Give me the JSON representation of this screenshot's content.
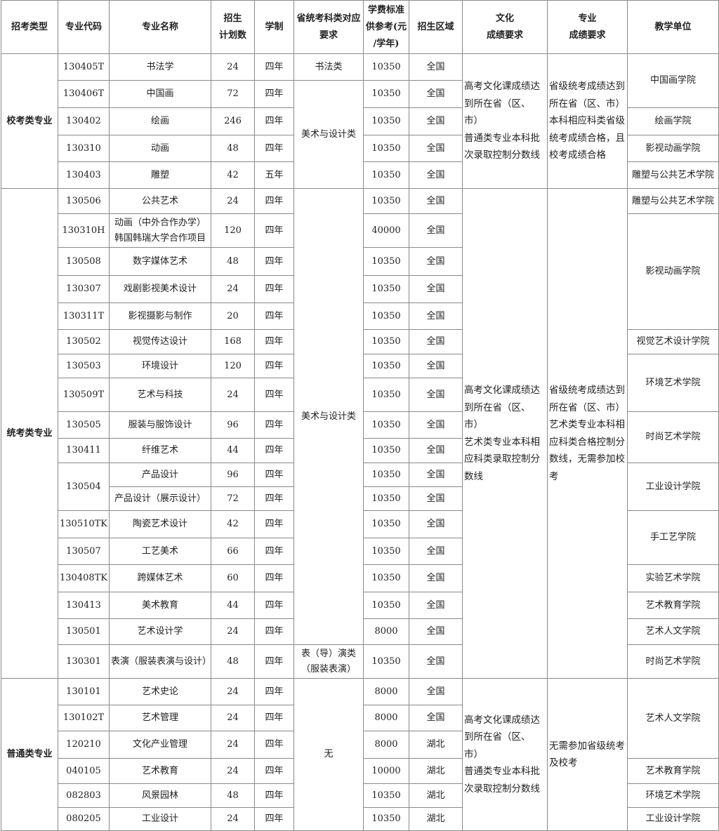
{
  "columns": [
    {
      "field": "category",
      "label": "招考类型"
    },
    {
      "field": "code",
      "label": "专业代码"
    },
    {
      "field": "name",
      "label": "专业名称"
    },
    {
      "field": "quota",
      "label": "招生\n计划数"
    },
    {
      "field": "duration",
      "label": "学制"
    },
    {
      "field": "subject",
      "label": "省统考科类对应\n要求"
    },
    {
      "field": "tuition",
      "label": "学费标准\n供参考(元\n/学年)"
    },
    {
      "field": "region",
      "label": "招生区域"
    },
    {
      "field": "culture_req",
      "label": "文化\n成绩要求"
    },
    {
      "field": "major_req",
      "label": "专业\n成绩要求"
    },
    {
      "field": "unit",
      "label": "教学单位"
    }
  ],
  "rows": [
    [
      {
        "f": "category",
        "t": "校考类专业",
        "span": 5
      },
      {
        "f": "code",
        "t": "130405T"
      },
      {
        "f": "name",
        "t": "书法学"
      },
      {
        "f": "quota",
        "t": "24"
      },
      {
        "f": "duration",
        "t": "四年"
      },
      {
        "f": "subject",
        "t": "书法类"
      },
      {
        "f": "tuition",
        "t": "10350"
      },
      {
        "f": "region",
        "t": "全国"
      },
      {
        "f": "culture_req",
        "t": "高考文化课成绩达\n到所在省（区、市）\n普通类专业本科批\n次录取控制分数线",
        "span": 5
      },
      {
        "f": "major_req",
        "t": "省级统考成绩达到\n所在省（区、市）\n本科相应科类省级\n统考成绩合格，且\n校考成绩合格",
        "span": 5
      },
      {
        "f": "unit",
        "t": "中国画学院",
        "span": 2
      }
    ],
    [
      {
        "f": "code",
        "t": "130406T"
      },
      {
        "f": "name",
        "t": "中国画"
      },
      {
        "f": "quota",
        "t": "72"
      },
      {
        "f": "duration",
        "t": "四年"
      },
      {
        "f": "subject",
        "t": "美术与设计类",
        "span": 4
      },
      {
        "f": "tuition",
        "t": "10350"
      },
      {
        "f": "region",
        "t": "全国"
      }
    ],
    [
      {
        "f": "code",
        "t": "130402"
      },
      {
        "f": "name",
        "t": "绘画"
      },
      {
        "f": "quota",
        "t": "246"
      },
      {
        "f": "duration",
        "t": "四年"
      },
      {
        "f": "tuition",
        "t": "10350"
      },
      {
        "f": "region",
        "t": "全国"
      },
      {
        "f": "unit",
        "t": "绘画学院"
      }
    ],
    [
      {
        "f": "code",
        "t": "130310"
      },
      {
        "f": "name",
        "t": "动画"
      },
      {
        "f": "quota",
        "t": "48"
      },
      {
        "f": "duration",
        "t": "四年"
      },
      {
        "f": "tuition",
        "t": "10350"
      },
      {
        "f": "region",
        "t": "全国"
      },
      {
        "f": "unit",
        "t": "影视动画学院"
      }
    ],
    [
      {
        "f": "code",
        "t": "130403"
      },
      {
        "f": "name",
        "t": "雕塑"
      },
      {
        "f": "quota",
        "t": "42"
      },
      {
        "f": "duration",
        "t": "五年"
      },
      {
        "f": "tuition",
        "t": "10350"
      },
      {
        "f": "region",
        "t": "全国"
      },
      {
        "f": "unit",
        "t": "雕塑与公共艺术学院"
      }
    ],
    [
      {
        "f": "category",
        "t": "统考类专业",
        "span": 18
      },
      {
        "f": "code",
        "t": "130506"
      },
      {
        "f": "name",
        "t": "公共艺术"
      },
      {
        "f": "quota",
        "t": "24"
      },
      {
        "f": "duration",
        "t": "四年"
      },
      {
        "f": "subject",
        "t": "美术与设计类",
        "span": 17
      },
      {
        "f": "tuition",
        "t": "10350"
      },
      {
        "f": "region",
        "t": "全国"
      },
      {
        "f": "culture_req",
        "t": "高考文化课成绩达\n到所在省（区、市）\n艺术类专业本科相\n应科类录取控制分\n数线",
        "span": 18
      },
      {
        "f": "major_req",
        "t": "省级统考成绩达到\n所在省（区、市）\n艺术类专业本科相\n应科类合格控制分\n数线，无需参加校\n考",
        "span": 18
      },
      {
        "f": "unit",
        "t": "雕塑与公共艺术学院"
      }
    ],
    [
      {
        "f": "code",
        "t": "130310H"
      },
      {
        "f": "name",
        "t": "动画（中外合作办学）\n韩国韩瑞大学合作项目"
      },
      {
        "f": "quota",
        "t": "120"
      },
      {
        "f": "duration",
        "t": "四年"
      },
      {
        "f": "tuition",
        "t": "40000"
      },
      {
        "f": "region",
        "t": "全国"
      },
      {
        "f": "unit",
        "t": "影视动画学院",
        "span": 4
      }
    ],
    [
      {
        "f": "code",
        "t": "130508"
      },
      {
        "f": "name",
        "t": "数字媒体艺术"
      },
      {
        "f": "quota",
        "t": "48"
      },
      {
        "f": "duration",
        "t": "四年"
      },
      {
        "f": "tuition",
        "t": "10350"
      },
      {
        "f": "region",
        "t": "全国"
      }
    ],
    [
      {
        "f": "code",
        "t": "130307"
      },
      {
        "f": "name",
        "t": "戏剧影视美术设计"
      },
      {
        "f": "quota",
        "t": "24"
      },
      {
        "f": "duration",
        "t": "四年"
      },
      {
        "f": "tuition",
        "t": "10350"
      },
      {
        "f": "region",
        "t": "全国"
      }
    ],
    [
      {
        "f": "code",
        "t": "130311T"
      },
      {
        "f": "name",
        "t": "影视摄影与制作"
      },
      {
        "f": "quota",
        "t": "20"
      },
      {
        "f": "duration",
        "t": "四年"
      },
      {
        "f": "tuition",
        "t": "10350"
      },
      {
        "f": "region",
        "t": "全国"
      }
    ],
    [
      {
        "f": "code",
        "t": "130502"
      },
      {
        "f": "name",
        "t": "视觉传达设计"
      },
      {
        "f": "quota",
        "t": "168"
      },
      {
        "f": "duration",
        "t": "四年"
      },
      {
        "f": "tuition",
        "t": "10350"
      },
      {
        "f": "region",
        "t": "全国"
      },
      {
        "f": "unit",
        "t": "视觉艺术设计学院"
      }
    ],
    [
      {
        "f": "code",
        "t": "130503"
      },
      {
        "f": "name",
        "t": "环境设计"
      },
      {
        "f": "quota",
        "t": "120"
      },
      {
        "f": "duration",
        "t": "四年"
      },
      {
        "f": "tuition",
        "t": "10350"
      },
      {
        "f": "region",
        "t": "全国"
      },
      {
        "f": "unit",
        "t": "环境艺术学院",
        "span": 2
      }
    ],
    [
      {
        "f": "code",
        "t": "130509T"
      },
      {
        "f": "name",
        "t": "艺术与科技"
      },
      {
        "f": "quota",
        "t": "24"
      },
      {
        "f": "duration",
        "t": "四年"
      },
      {
        "f": "tuition",
        "t": "10350"
      },
      {
        "f": "region",
        "t": "全国"
      }
    ],
    [
      {
        "f": "code",
        "t": "130505"
      },
      {
        "f": "name",
        "t": "服装与服饰设计"
      },
      {
        "f": "quota",
        "t": "96"
      },
      {
        "f": "duration",
        "t": "四年"
      },
      {
        "f": "tuition",
        "t": "10350"
      },
      {
        "f": "region",
        "t": "全国"
      },
      {
        "f": "unit",
        "t": "时尚艺术学院",
        "span": 2
      }
    ],
    [
      {
        "f": "code",
        "t": "130411"
      },
      {
        "f": "name",
        "t": "纤维艺术"
      },
      {
        "f": "quota",
        "t": "44"
      },
      {
        "f": "duration",
        "t": "四年"
      },
      {
        "f": "tuition",
        "t": "10350"
      },
      {
        "f": "region",
        "t": "全国"
      }
    ],
    [
      {
        "f": "code",
        "t": "130504",
        "span": 2
      },
      {
        "f": "name",
        "t": "产品设计"
      },
      {
        "f": "quota",
        "t": "96"
      },
      {
        "f": "duration",
        "t": "四年"
      },
      {
        "f": "tuition",
        "t": "10350"
      },
      {
        "f": "region",
        "t": "全国"
      },
      {
        "f": "unit",
        "t": "工业设计学院",
        "span": 2
      }
    ],
    [
      {
        "f": "name",
        "t": "产品设计（展示设计）"
      },
      {
        "f": "quota",
        "t": "72"
      },
      {
        "f": "duration",
        "t": "四年"
      },
      {
        "f": "tuition",
        "t": "10350"
      },
      {
        "f": "region",
        "t": "全国"
      }
    ],
    [
      {
        "f": "code",
        "t": "130510TK"
      },
      {
        "f": "name",
        "t": "陶瓷艺术设计"
      },
      {
        "f": "quota",
        "t": "42"
      },
      {
        "f": "duration",
        "t": "四年"
      },
      {
        "f": "tuition",
        "t": "10350"
      },
      {
        "f": "region",
        "t": "全国"
      },
      {
        "f": "unit",
        "t": "手工艺学院",
        "span": 2
      }
    ],
    [
      {
        "f": "code",
        "t": "130507"
      },
      {
        "f": "name",
        "t": "工艺美术"
      },
      {
        "f": "quota",
        "t": "66"
      },
      {
        "f": "duration",
        "t": "四年"
      },
      {
        "f": "tuition",
        "t": "10350"
      },
      {
        "f": "region",
        "t": "全国"
      }
    ],
    [
      {
        "f": "code",
        "t": "130408TK"
      },
      {
        "f": "name",
        "t": "跨媒体艺术"
      },
      {
        "f": "quota",
        "t": "60"
      },
      {
        "f": "duration",
        "t": "四年"
      },
      {
        "f": "tuition",
        "t": "10350"
      },
      {
        "f": "region",
        "t": "全国"
      },
      {
        "f": "unit",
        "t": "实验艺术学院"
      }
    ],
    [
      {
        "f": "code",
        "t": "130413"
      },
      {
        "f": "name",
        "t": "美术教育"
      },
      {
        "f": "quota",
        "t": "44"
      },
      {
        "f": "duration",
        "t": "四年"
      },
      {
        "f": "tuition",
        "t": "10350"
      },
      {
        "f": "region",
        "t": "全国"
      },
      {
        "f": "unit",
        "t": "艺术教育学院"
      }
    ],
    [
      {
        "f": "code",
        "t": "130501"
      },
      {
        "f": "name",
        "t": "艺术设计学"
      },
      {
        "f": "quota",
        "t": "24"
      },
      {
        "f": "duration",
        "t": "四年"
      },
      {
        "f": "tuition",
        "t": "8000"
      },
      {
        "f": "region",
        "t": "全国"
      },
      {
        "f": "unit",
        "t": "艺术人文学院"
      }
    ],
    [
      {
        "f": "code",
        "t": "130301"
      },
      {
        "f": "name",
        "t": "表演（服装表演与设计）"
      },
      {
        "f": "quota",
        "t": "48"
      },
      {
        "f": "duration",
        "t": "四年"
      },
      {
        "f": "subject",
        "t": "表（导）演类\n（服装表演）"
      },
      {
        "f": "tuition",
        "t": "10350"
      },
      {
        "f": "region",
        "t": "全国"
      },
      {
        "f": "unit",
        "t": "时尚艺术学院"
      }
    ],
    [
      {
        "f": "category",
        "t": "普通类专业",
        "span": 6
      },
      {
        "f": "code",
        "t": "130101"
      },
      {
        "f": "name",
        "t": "艺术史论"
      },
      {
        "f": "quota",
        "t": "24"
      },
      {
        "f": "duration",
        "t": "四年"
      },
      {
        "f": "subject",
        "t": "无",
        "span": 6
      },
      {
        "f": "tuition",
        "t": "8000"
      },
      {
        "f": "region",
        "t": "全国"
      },
      {
        "f": "culture_req",
        "t": "高考文化课成绩达\n到所在省（区、市）\n普通类专业本科批\n次录取控制分数线",
        "span": 6
      },
      {
        "f": "major_req",
        "t": "无需参加省级统考\n及校考",
        "span": 6
      },
      {
        "f": "unit",
        "t": "艺术人文学院",
        "span": 3
      }
    ],
    [
      {
        "f": "code",
        "t": "130102T"
      },
      {
        "f": "name",
        "t": "艺术管理"
      },
      {
        "f": "quota",
        "t": "24"
      },
      {
        "f": "duration",
        "t": "四年"
      },
      {
        "f": "tuition",
        "t": "8000"
      },
      {
        "f": "region",
        "t": "全国"
      }
    ],
    [
      {
        "f": "code",
        "t": "120210"
      },
      {
        "f": "name",
        "t": "文化产业管理"
      },
      {
        "f": "quota",
        "t": "24"
      },
      {
        "f": "duration",
        "t": "四年"
      },
      {
        "f": "tuition",
        "t": "8000"
      },
      {
        "f": "region",
        "t": "湖北"
      }
    ],
    [
      {
        "f": "code",
        "t": "040105"
      },
      {
        "f": "name",
        "t": "艺术教育"
      },
      {
        "f": "quota",
        "t": "24"
      },
      {
        "f": "duration",
        "t": "四年"
      },
      {
        "f": "tuition",
        "t": "10000"
      },
      {
        "f": "region",
        "t": "湖北"
      },
      {
        "f": "unit",
        "t": "艺术教育学院"
      }
    ],
    [
      {
        "f": "code",
        "t": "082803"
      },
      {
        "f": "name",
        "t": "风景园林"
      },
      {
        "f": "quota",
        "t": "48"
      },
      {
        "f": "duration",
        "t": "四年"
      },
      {
        "f": "tuition",
        "t": "10350"
      },
      {
        "f": "region",
        "t": "湖北"
      },
      {
        "f": "unit",
        "t": "环境艺术学院"
      }
    ],
    [
      {
        "f": "code",
        "t": "080205"
      },
      {
        "f": "name",
        "t": "工业设计"
      },
      {
        "f": "quota",
        "t": "24"
      },
      {
        "f": "duration",
        "t": "四年"
      },
      {
        "f": "tuition",
        "t": "10350"
      },
      {
        "f": "region",
        "t": "湖北"
      },
      {
        "f": "unit",
        "t": "工业设计学院"
      }
    ]
  ]
}
